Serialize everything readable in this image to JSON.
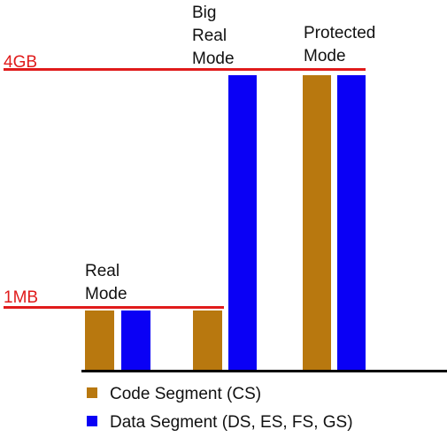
{
  "colors": {
    "code_segment": "#b8780f",
    "data_segment": "#0a00f5",
    "limit_line": "#e01b1b",
    "baseline": "#000000",
    "text": "#111111"
  },
  "limits": {
    "four_gb": "4GB",
    "one_mb": "1MB"
  },
  "modes": {
    "real": {
      "line1": "Real",
      "line2": "Mode"
    },
    "big_real": {
      "line1": "Big",
      "line2": "Real",
      "line3": "Mode"
    },
    "protected": {
      "line1": "Protected",
      "line2": "Mode"
    }
  },
  "legend": [
    {
      "label": "Code Segment (CS)",
      "color": "#b8780f"
    },
    {
      "label": "Data Segment (DS, ES, FS, GS)",
      "color": "#0a00f5"
    }
  ]
}
